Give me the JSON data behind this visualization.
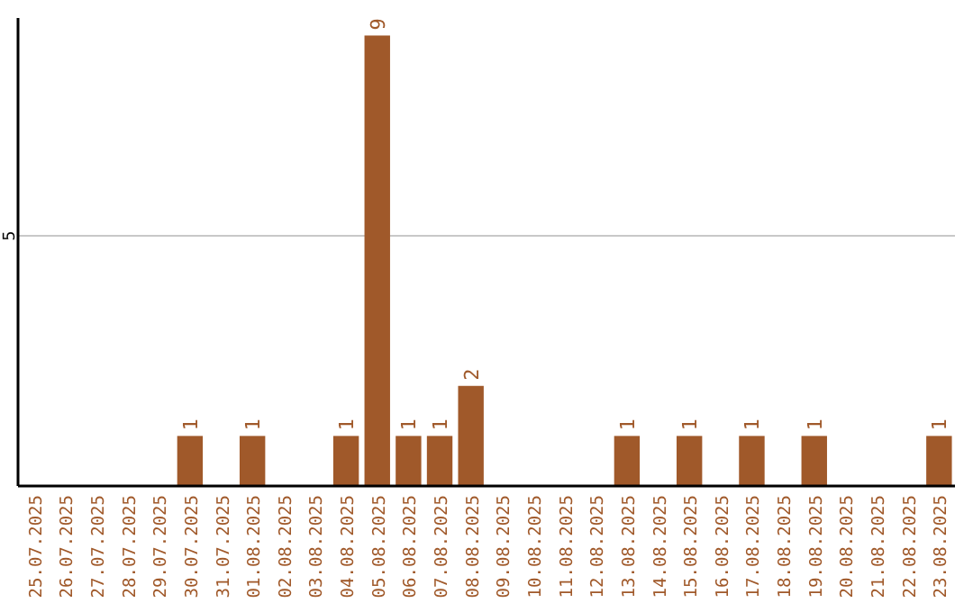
{
  "chart_data": {
    "type": "bar",
    "categories": [
      "25.07.2025",
      "26.07.2025",
      "27.07.2025",
      "28.07.2025",
      "29.07.2025",
      "30.07.2025",
      "31.07.2025",
      "01.08.2025",
      "02.08.2025",
      "03.08.2025",
      "04.08.2025",
      "05.08.2025",
      "06.08.2025",
      "07.08.2025",
      "08.08.2025",
      "09.08.2025",
      "10.08.2025",
      "11.08.2025",
      "12.08.2025",
      "13.08.2025",
      "14.08.2025",
      "15.08.2025",
      "16.08.2025",
      "17.08.2025",
      "18.08.2025",
      "19.08.2025",
      "20.08.2025",
      "21.08.2025",
      "22.08.2025",
      "23.08.2025"
    ],
    "values": [
      0,
      0,
      0,
      0,
      0,
      1,
      0,
      1,
      0,
      0,
      1,
      9,
      1,
      1,
      2,
      0,
      0,
      0,
      0,
      1,
      0,
      1,
      0,
      1,
      0,
      1,
      0,
      0,
      0,
      1
    ],
    "value_labels": [
      null,
      null,
      null,
      null,
      null,
      "1",
      null,
      "1",
      null,
      null,
      "1",
      "9",
      "1",
      "1",
      "2",
      null,
      null,
      null,
      null,
      "1",
      null,
      "1",
      null,
      "1",
      null,
      "1",
      null,
      null,
      null,
      "1"
    ],
    "color": "#a0592a",
    "ylim": [
      0,
      9.35
    ],
    "yticks": [
      5
    ],
    "grid": "y"
  }
}
